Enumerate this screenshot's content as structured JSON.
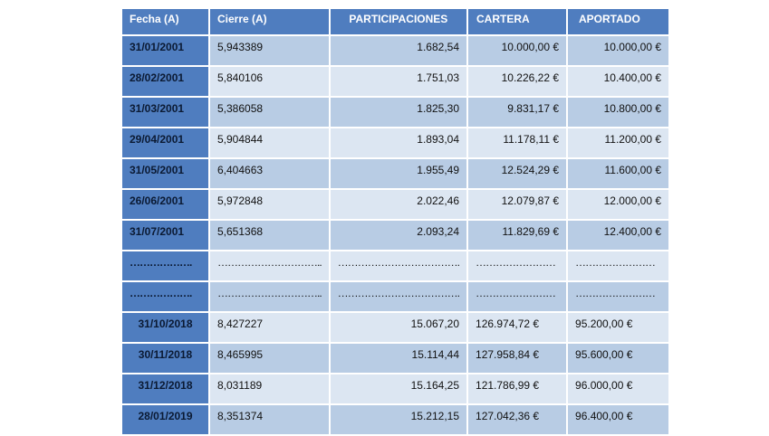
{
  "headers": [
    "Fecha (A)",
    "Cierre (A)",
    "PARTICIPACIONES",
    "CARTERA",
    "APORTADO"
  ],
  "rows": [
    [
      "31/01/2001",
      "5,943389",
      "1.682,54",
      "10.000,00 €",
      "10.000,00 €"
    ],
    [
      "28/02/2001",
      "5,840106",
      "1.751,03",
      "10.226,22 €",
      "10.400,00 €"
    ],
    [
      "31/03/2001",
      "5,386058",
      "1.825,30",
      "9.831,17 €",
      "10.800,00 €"
    ],
    [
      "29/04/2001",
      "5,904844",
      "1.893,04",
      "11.178,11 €",
      "11.200,00 €"
    ],
    [
      "31/05/2001",
      "6,404663",
      "1.955,49",
      "12.524,29 €",
      "11.600,00 €"
    ],
    [
      "26/06/2001",
      "5,972848",
      "2.022,46",
      "12.079,87 €",
      "12.000,00 €"
    ],
    [
      "31/07/2001",
      "5,651368",
      "2.093,24",
      "11.829,69 €",
      "12.400,00 €"
    ],
    [
      "……………….",
      "…………………………..",
      "……………………………….",
      "……………………",
      "……………………"
    ],
    [
      "……………….",
      "…………………………..",
      "……………………………….",
      "……………………",
      "……………………"
    ],
    [
      "31/10/2018",
      "8,427227",
      "15.067,20",
      "126.974,72 €",
      "95.200,00 €"
    ],
    [
      "30/11/2018",
      "8,465995",
      "15.114,44",
      "127.958,84 €",
      "95.600,00 €"
    ],
    [
      "31/12/2018",
      "8,031189",
      "15.164,25",
      "121.786,99 €",
      "96.000,00 €"
    ],
    [
      "28/01/2019",
      "8,351374",
      "15.212,15",
      "127.042,36 €",
      "96.400,00 €"
    ]
  ]
}
